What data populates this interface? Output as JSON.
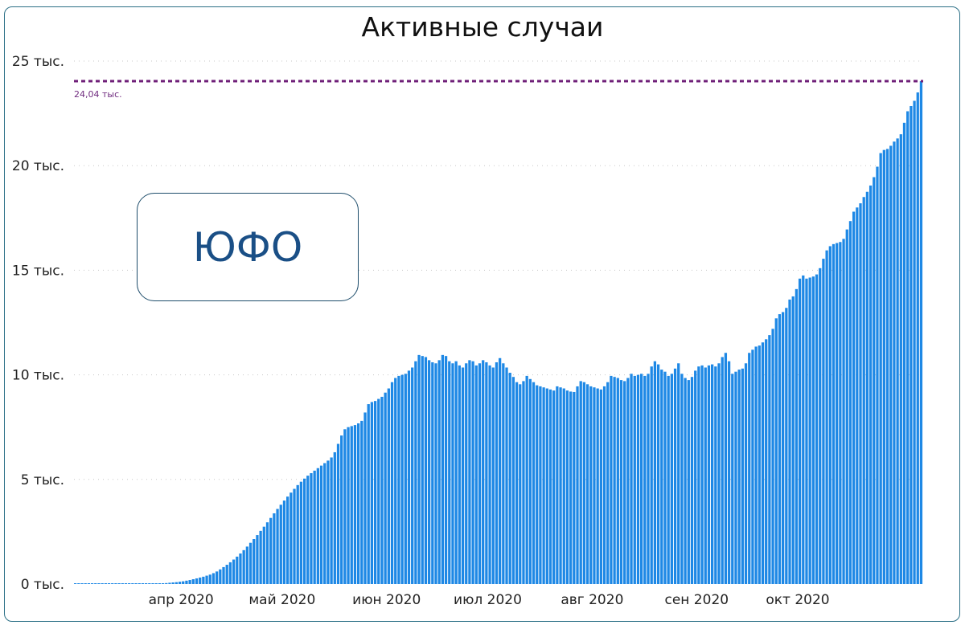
{
  "chart_data": {
    "type": "bar",
    "title": "Активные случаи",
    "annotation": "ЮФО",
    "ylim": [
      0,
      25000
    ],
    "yticks": [
      {
        "value": 0,
        "label": "0 тыс."
      },
      {
        "value": 5000,
        "label": "5 тыс."
      },
      {
        "value": 10000,
        "label": "10 тыс."
      },
      {
        "value": 15000,
        "label": "15 тыс."
      },
      {
        "value": 20000,
        "label": "20 тыс."
      },
      {
        "value": 25000,
        "label": "25 тыс."
      }
    ],
    "xticks": [
      "апр 2020",
      "май 2020",
      "июн 2020",
      "июл 2020",
      "авг 2020",
      "сен 2020",
      "окт 2020"
    ],
    "grid": "horizontal-dotted",
    "reference_line": {
      "value": 24040,
      "label": "24,04 тыс.",
      "color": "#6f1f78"
    },
    "bar_color": "#1e88e5",
    "x_start": "2020-03-05",
    "x_end": "2020-10-29",
    "values": [
      0,
      0,
      0,
      0,
      0,
      0,
      0,
      0,
      0,
      0,
      0,
      0,
      0,
      0,
      0,
      0,
      0,
      0,
      0,
      0,
      0,
      0,
      10,
      15,
      20,
      25,
      35,
      45,
      60,
      75,
      90,
      110,
      130,
      160,
      190,
      230,
      270,
      310,
      350,
      400,
      450,
      520,
      600,
      700,
      810,
      920,
      1040,
      1170,
      1310,
      1460,
      1620,
      1790,
      1970,
      2150,
      2340,
      2540,
      2740,
      2950,
      3160,
      3380,
      3590,
      3790,
      3990,
      4180,
      4370,
      4550,
      4730,
      4890,
      5040,
      5180,
      5300,
      5420,
      5540,
      5660,
      5780,
      5900,
      6050,
      6300,
      6700,
      7100,
      7400,
      7500,
      7550,
      7600,
      7680,
      7800,
      8200,
      8600,
      8700,
      8750,
      8850,
      8950,
      9150,
      9350,
      9650,
      9850,
      9950,
      10000,
      10050,
      10200,
      10350,
      10650,
      10950,
      10900,
      10850,
      10700,
      10600,
      10550,
      10700,
      10950,
      10900,
      10650,
      10550,
      10650,
      10450,
      10350,
      10550,
      10700,
      10650,
      10450,
      10550,
      10700,
      10600,
      10450,
      10350,
      10600,
      10800,
      10550,
      10350,
      10100,
      9900,
      9650,
      9550,
      9700,
      9950,
      9800,
      9650,
      9500,
      9450,
      9400,
      9350,
      9300,
      9250,
      9450,
      9400,
      9350,
      9250,
      9200,
      9180,
      9450,
      9700,
      9650,
      9550,
      9450,
      9400,
      9350,
      9300,
      9450,
      9650,
      9950,
      9900,
      9850,
      9750,
      9700,
      9850,
      10050,
      9950,
      10000,
      10050,
      9950,
      10050,
      10400,
      10650,
      10500,
      10250,
      10150,
      9950,
      10050,
      10300,
      10550,
      10050,
      9850,
      9750,
      9900,
      10200,
      10400,
      10450,
      10350,
      10450,
      10500,
      10400,
      10550,
      10850,
      11050,
      10650,
      10050,
      10150,
      10250,
      10300,
      10550,
      11050,
      11200,
      11350,
      11400,
      11550,
      11700,
      11900,
      12200,
      12700,
      12900,
      13000,
      13200,
      13600,
      13750,
      14100,
      14600,
      14750,
      14600,
      14650,
      14700,
      14800,
      15100,
      15550,
      15950,
      16150,
      16250,
      16300,
      16350,
      16500,
      16950,
      17350,
      17800,
      18000,
      18200,
      18500,
      18750,
      19050,
      19450,
      19950,
      20600,
      20750,
      20800,
      20950,
      21150,
      21300,
      21500,
      22050,
      22600,
      22850,
      23100,
      23500,
      24040
    ]
  }
}
